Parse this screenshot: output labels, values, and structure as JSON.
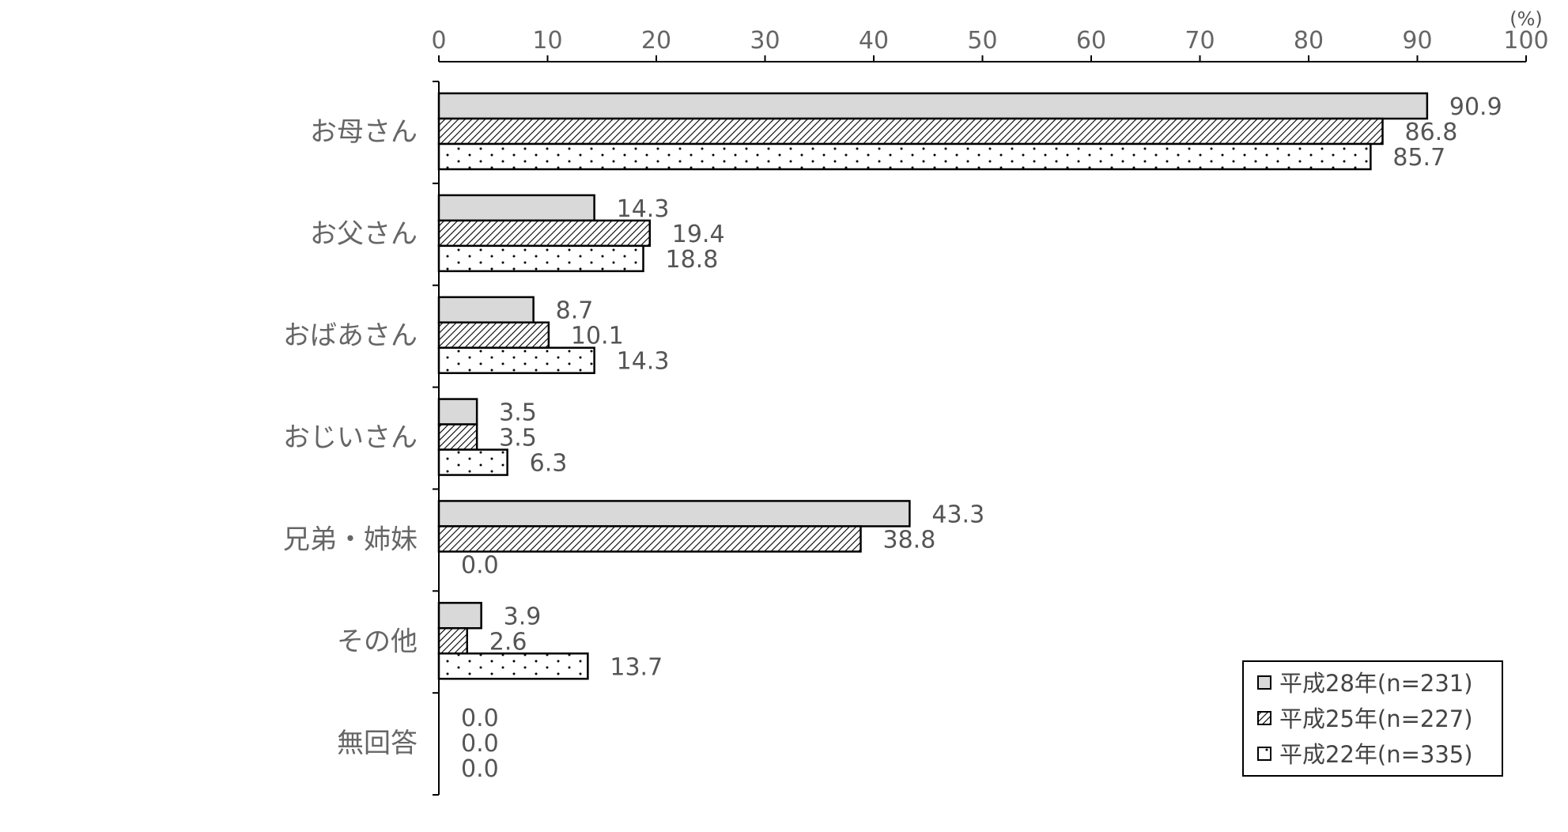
{
  "chart_data": {
    "type": "bar",
    "orientation": "horizontal",
    "unit": "(%)",
    "xlim": [
      0,
      100
    ],
    "x_ticks": [
      "0",
      "10",
      "20",
      "30",
      "40",
      "50",
      "60",
      "70",
      "80",
      "90",
      "100"
    ],
    "categories": [
      "お母さん",
      "お父さん",
      "おばあさん",
      "おじいさん",
      "兄弟・姉妹",
      "その他",
      "無回答"
    ],
    "series": [
      {
        "name": "平成28年(n=231)",
        "pattern": "solid-gray",
        "color": "#d9d9d9",
        "values": [
          90.9,
          14.3,
          8.7,
          3.5,
          43.3,
          3.9,
          0.0
        ],
        "labels": [
          "90.9",
          "14.3",
          "8.7",
          "3.5",
          "43.3",
          "3.9",
          "0.0"
        ]
      },
      {
        "name": "平成25年(n=227)",
        "pattern": "diagonal-hatch",
        "color": "#000000",
        "values": [
          86.8,
          19.4,
          10.1,
          3.5,
          38.8,
          2.6,
          0.0
        ],
        "labels": [
          "86.8",
          "19.4",
          "10.1",
          "3.5",
          "38.8",
          "2.6",
          "0.0"
        ]
      },
      {
        "name": "平成22年(n=335)",
        "pattern": "dots",
        "color": "#000000",
        "values": [
          85.7,
          18.8,
          14.3,
          6.3,
          0.0,
          13.7,
          0.0
        ],
        "labels": [
          "85.7",
          "18.8",
          "14.3",
          "6.3",
          "0.0",
          "13.7",
          "0.0"
        ]
      }
    ],
    "legend_position": "bottom-right",
    "grid": false
  }
}
